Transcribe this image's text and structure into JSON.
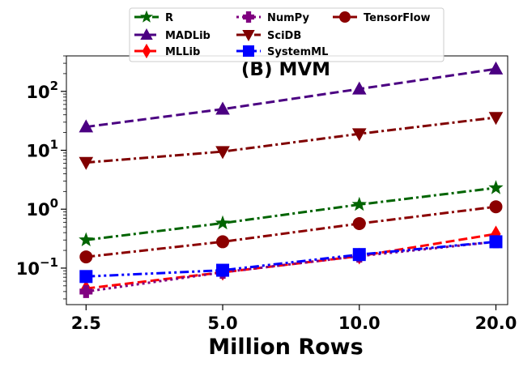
{
  "chart_data": {
    "type": "line",
    "title": "(B) MVM",
    "xlabel": "Million Rows",
    "ylabel": "",
    "x": [
      2.5,
      5.0,
      10.0,
      20.0
    ],
    "x_tick_labels": [
      "2.5",
      "5.0",
      "10.0",
      "20.0"
    ],
    "y_scale": "log",
    "ylim": [
      0.024,
      400
    ],
    "y_ticks": [
      {
        "value": 0.1,
        "base": "10",
        "exp": "−1"
      },
      {
        "value": 1,
        "base": "10",
        "exp": "0"
      },
      {
        "value": 10,
        "base": "10",
        "exp": "1"
      },
      {
        "value": 100,
        "base": "10",
        "exp": "2"
      }
    ],
    "legend_position": "top",
    "series": [
      {
        "name": "R",
        "color": "#006400",
        "marker": "star",
        "dash": "dashdot",
        "values": [
          0.3,
          0.58,
          1.2,
          2.3
        ]
      },
      {
        "name": "MADLib",
        "color": "#4b0082",
        "marker": "triangle-up",
        "dash": "dashed",
        "values": [
          25,
          50,
          110,
          240
        ]
      },
      {
        "name": "MLLib",
        "color": "#ff0000",
        "marker": "diamond",
        "dash": "dashed",
        "values": [
          0.045,
          0.085,
          0.16,
          0.38
        ]
      },
      {
        "name": "NumPy",
        "color": "#800080",
        "marker": "plus",
        "dash": "dotted",
        "values": [
          0.04,
          0.085,
          0.16,
          0.28
        ]
      },
      {
        "name": "SciDB",
        "color": "#800000",
        "marker": "triangle-down",
        "dash": "dashdot",
        "values": [
          6.2,
          9.5,
          19,
          36
        ]
      },
      {
        "name": "SystemML",
        "color": "#0000ff",
        "marker": "square",
        "dash": "dashdotdot",
        "values": [
          0.072,
          0.092,
          0.17,
          0.28
        ]
      },
      {
        "name": "TensorFlow",
        "color": "#8b0000",
        "marker": "circle",
        "dash": "dashdot",
        "values": [
          0.155,
          0.28,
          0.57,
          1.1
        ]
      }
    ]
  }
}
